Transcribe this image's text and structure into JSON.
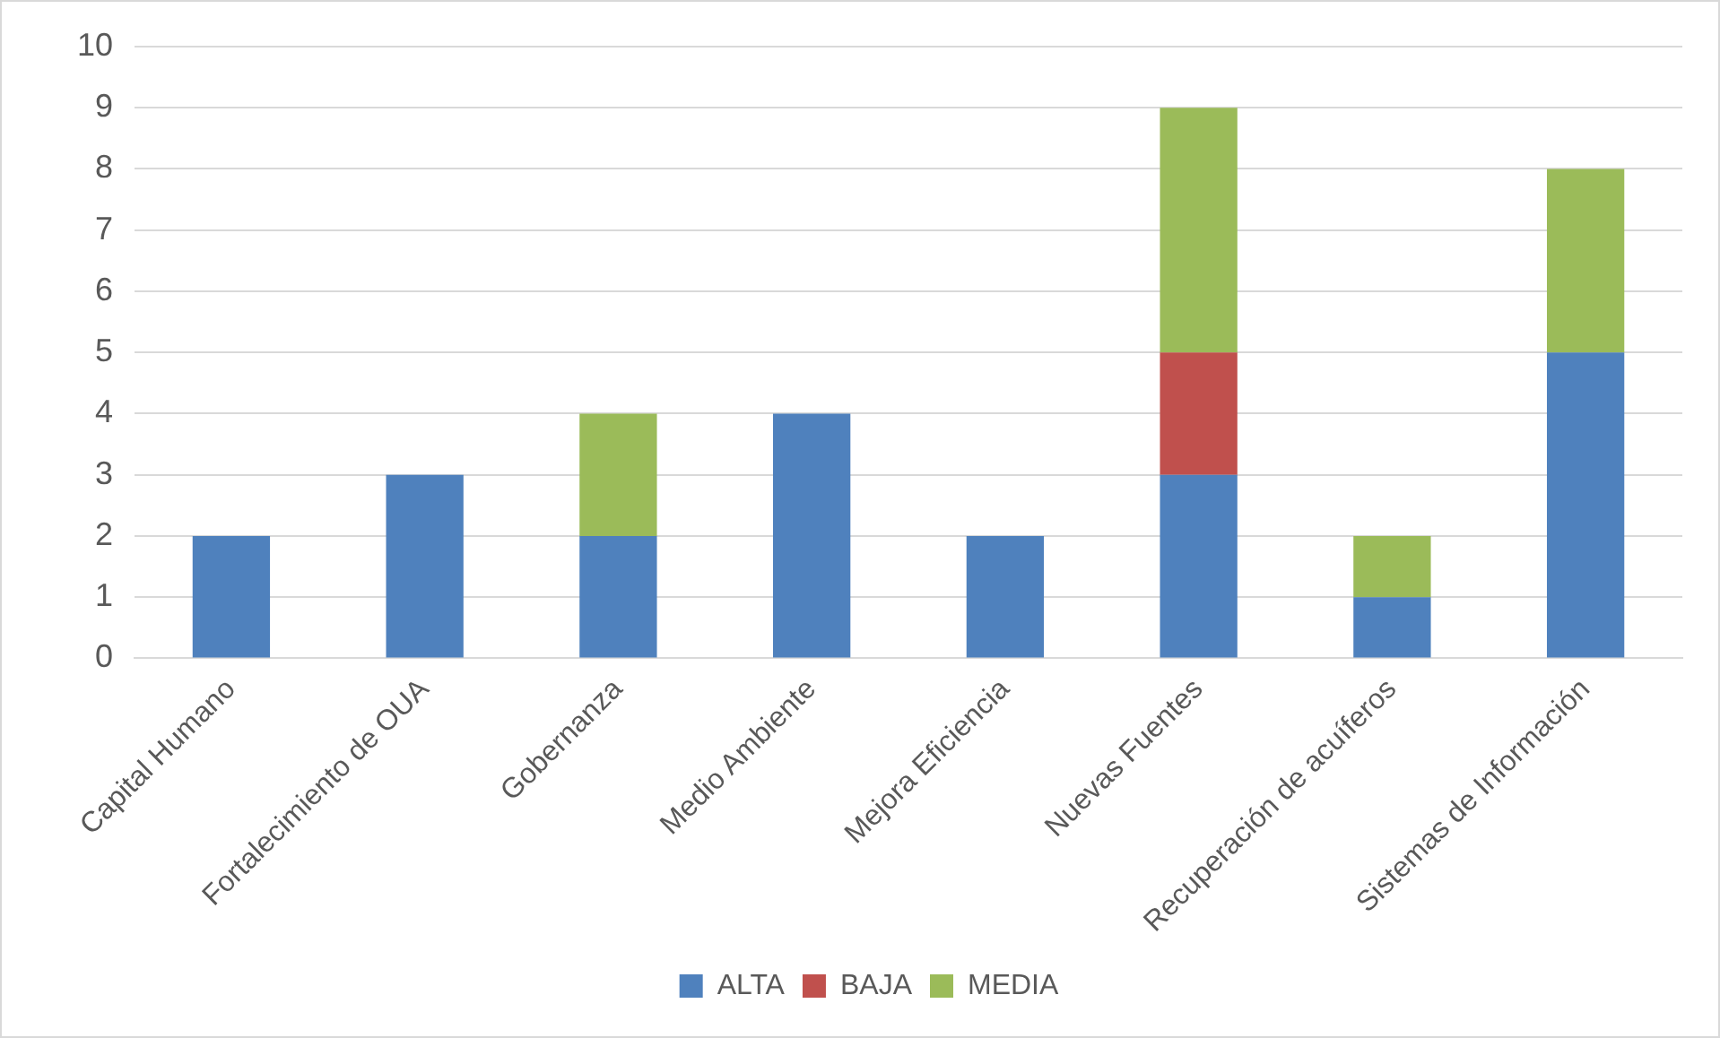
{
  "chart_data": {
    "type": "bar",
    "stacked": true,
    "categories": [
      "Capital Humano",
      "Fortalecimiento de OUA",
      "Gobernanza",
      "Medio Ambiente",
      "Mejora Eficiencia",
      "Nuevas Fuentes",
      "Recuperación de acuíferos",
      "Sistemas de Información"
    ],
    "series": [
      {
        "name": "ALTA",
        "color": "#4f81bd",
        "values": [
          2,
          3,
          2,
          4,
          2,
          3,
          1,
          5
        ]
      },
      {
        "name": "BAJA",
        "color": "#c0504d",
        "values": [
          null,
          null,
          null,
          null,
          null,
          2,
          null,
          null
        ]
      },
      {
        "name": "MEDIA",
        "color": "#9bbb59",
        "values": [
          null,
          null,
          2,
          null,
          null,
          4,
          1,
          3
        ]
      }
    ],
    "ylim": [
      0,
      10
    ],
    "yticks": [
      0,
      1,
      2,
      3,
      4,
      5,
      6,
      7,
      8,
      9,
      10
    ],
    "grid": "y",
    "legend": "bottom"
  }
}
